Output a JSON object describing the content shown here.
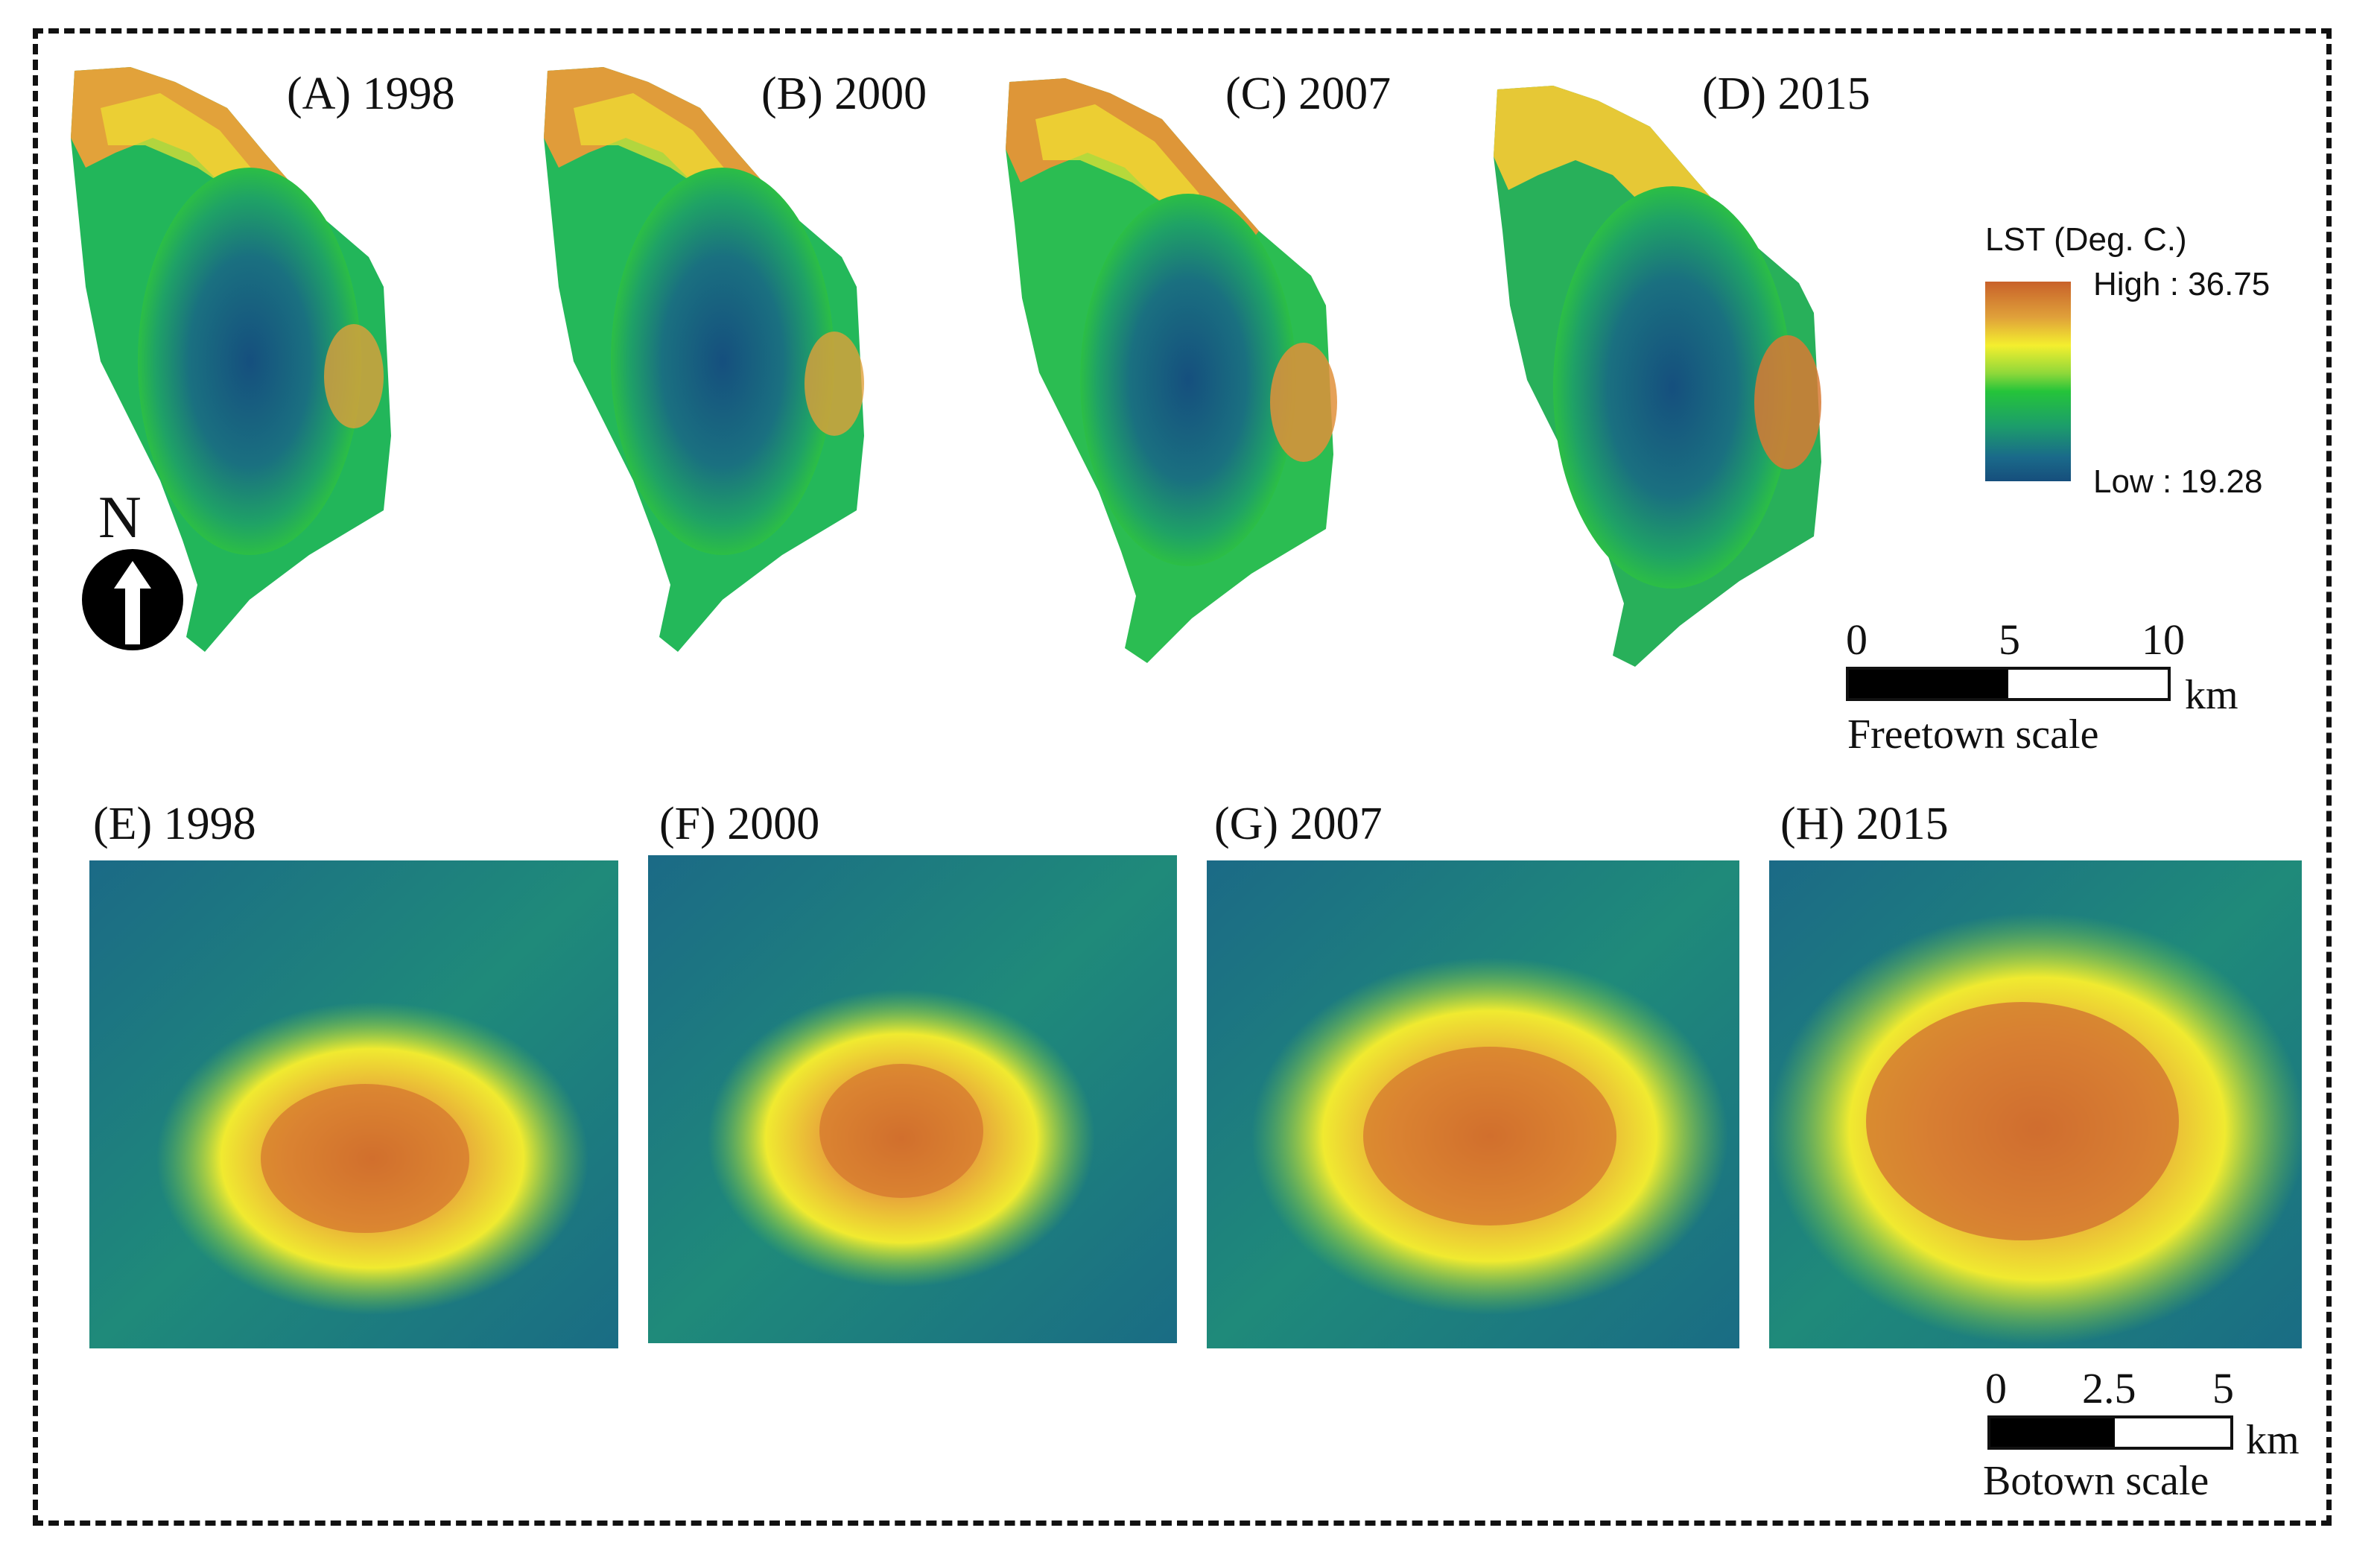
{
  "panels_top": [
    {
      "label": "(A) 1998"
    },
    {
      "label": "(B) 2000"
    },
    {
      "label": "(C) 2007"
    },
    {
      "label": "(D) 2015"
    }
  ],
  "panels_bottom": [
    {
      "label": "(E) 1998"
    },
    {
      "label": "(F) 2000"
    },
    {
      "label": "(G) 2007"
    },
    {
      "label": "(H) 2015"
    }
  ],
  "north": {
    "letter": "N"
  },
  "legend": {
    "title": "LST (Deg. C.)",
    "high": "High : 36.75",
    "low": "Low : 19.28",
    "colors": [
      "#c8612a",
      "#f4ef2e",
      "#25c43a",
      "#164e7c"
    ]
  },
  "scale_freetown": {
    "ticks": [
      "0",
      "5",
      "10"
    ],
    "unit": "km",
    "caption": "Freetown scale"
  },
  "scale_botown": {
    "ticks": [
      "0",
      "2.5",
      "5"
    ],
    "unit": "km",
    "caption": "Botown scale"
  }
}
